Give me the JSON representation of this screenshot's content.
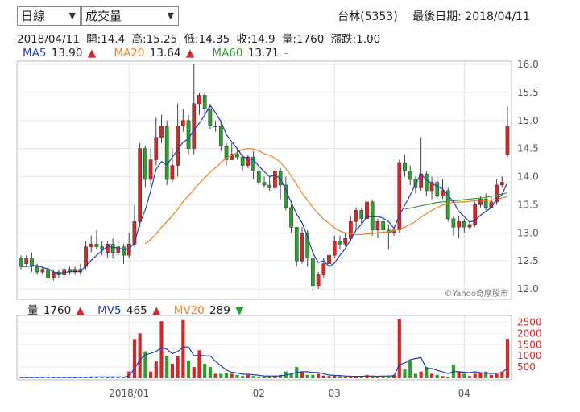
{
  "controls": {
    "period": "日線",
    "indicator": "成交量"
  },
  "header": {
    "stock": "台林(5353)",
    "last_date_label": "最後日期: 2018/04/11"
  },
  "ohlc": {
    "date": "2018/04/11",
    "open": "開:14.4",
    "high": "高:15.25",
    "low": "低:14.35",
    "close": "收:14.9",
    "volume": "量:1760",
    "change": "漲跌:1.00"
  },
  "ma_legend": {
    "ma5_label": "MA5",
    "ma5_value": "13.90",
    "ma5_arrow": "▲",
    "ma20_label": "MA20",
    "ma20_value": "13.64",
    "ma20_arrow": "▲",
    "ma60_label": "MA60",
    "ma60_value": "13.71",
    "ma60_arrow": "-"
  },
  "vol_legend": {
    "vol_label": "量",
    "vol_value": "1760",
    "vol_arrow": "▲",
    "mv5_label": "MV5",
    "mv5_value": "465",
    "mv5_arrow": "▲",
    "mv20_label": "MV20",
    "mv20_value": "289",
    "mv20_arrow": "▼"
  },
  "watermark": "©Yahoo奇摩股市",
  "colors": {
    "up": "#d62728",
    "down": "#2ca02c",
    "ma5": "#1f3fb4",
    "ma20": "#f07f1e",
    "ma60": "#3a9a3a"
  },
  "chart_data": {
    "type": "candlestick",
    "price_axis": {
      "ylim": [
        11.9,
        16.0
      ],
      "ticks": [
        "12.0",
        "12.5",
        "13.0",
        "13.5",
        "14.0",
        "14.5",
        "15.0",
        "15.5",
        "16.0"
      ]
    },
    "volume_axis": {
      "ylim": [
        0,
        2700
      ],
      "ticks": [
        "500",
        "1000",
        "1500",
        "2000",
        "2500"
      ]
    },
    "x_ticks": [
      {
        "label": "2018/01",
        "index": 20
      },
      {
        "label": "02",
        "index": 44
      },
      {
        "label": "03",
        "index": 58
      },
      {
        "label": "04",
        "index": 82
      }
    ],
    "candles": [
      [
        12.55,
        12.4,
        12.6,
        12.35
      ],
      [
        12.45,
        12.55,
        12.6,
        12.4
      ],
      [
        12.55,
        12.4,
        12.65,
        12.3
      ],
      [
        12.4,
        12.3,
        12.45,
        12.25
      ],
      [
        12.3,
        12.35,
        12.4,
        12.25
      ],
      [
        12.35,
        12.2,
        12.4,
        12.15
      ],
      [
        12.2,
        12.3,
        12.35,
        12.15
      ],
      [
        12.3,
        12.25,
        12.35,
        12.2
      ],
      [
        12.25,
        12.35,
        12.4,
        12.2
      ],
      [
        12.35,
        12.3,
        12.4,
        12.25
      ],
      [
        12.3,
        12.35,
        12.4,
        12.25
      ],
      [
        12.35,
        12.3,
        12.45,
        12.25
      ],
      [
        12.4,
        12.75,
        12.85,
        12.35
      ],
      [
        12.75,
        12.8,
        12.95,
        12.65
      ],
      [
        12.8,
        12.75,
        13.05,
        12.7
      ],
      [
        12.75,
        12.7,
        12.85,
        12.6
      ],
      [
        12.65,
        12.8,
        12.85,
        12.55
      ],
      [
        12.8,
        12.65,
        12.9,
        12.55
      ],
      [
        12.65,
        12.75,
        12.85,
        12.6
      ],
      [
        12.75,
        12.6,
        12.8,
        12.45
      ],
      [
        12.6,
        12.8,
        13.0,
        12.55
      ],
      [
        12.8,
        13.2,
        13.5,
        12.75
      ],
      [
        13.2,
        14.5,
        14.6,
        13.1
      ],
      [
        14.5,
        13.95,
        14.55,
        13.8
      ],
      [
        13.95,
        14.3,
        14.5,
        13.85
      ],
      [
        14.3,
        14.7,
        15.05,
        14.2
      ],
      [
        14.7,
        14.9,
        15.1,
        14.6
      ],
      [
        14.9,
        13.95,
        15.0,
        13.85
      ],
      [
        13.95,
        14.2,
        14.5,
        13.9
      ],
      [
        14.2,
        14.9,
        15.3,
        14.0
      ],
      [
        14.9,
        15.0,
        15.2,
        14.8
      ],
      [
        15.0,
        14.5,
        15.1,
        14.4
      ],
      [
        14.5,
        15.3,
        16.0,
        14.4
      ],
      [
        15.3,
        15.45,
        15.5,
        15.1
      ],
      [
        15.45,
        15.2,
        15.5,
        15.1
      ],
      [
        15.2,
        14.9,
        15.3,
        14.85
      ],
      [
        14.9,
        14.9,
        15.0,
        14.8
      ],
      [
        14.9,
        14.55,
        15.0,
        14.45
      ],
      [
        14.55,
        14.3,
        14.6,
        14.2
      ],
      [
        14.3,
        14.4,
        14.6,
        14.3
      ],
      [
        14.4,
        14.35,
        14.5,
        14.3
      ],
      [
        14.35,
        14.2,
        14.4,
        14.1
      ],
      [
        14.2,
        14.35,
        14.4,
        14.15
      ],
      [
        14.35,
        14.1,
        14.45,
        13.95
      ],
      [
        14.1,
        13.9,
        14.15,
        13.85
      ],
      [
        13.9,
        13.85,
        14.0,
        13.8
      ],
      [
        13.85,
        13.8,
        14.0,
        13.75
      ],
      [
        13.8,
        14.1,
        14.2,
        13.75
      ],
      [
        14.1,
        13.85,
        14.15,
        13.6
      ],
      [
        13.85,
        13.45,
        14.0,
        13.4
      ],
      [
        13.45,
        13.1,
        13.5,
        13.0
      ],
      [
        13.1,
        12.5,
        13.1,
        12.4
      ],
      [
        12.5,
        13.0,
        13.1,
        12.45
      ],
      [
        13.0,
        12.55,
        13.05,
        12.4
      ],
      [
        12.55,
        12.05,
        12.6,
        11.9
      ],
      [
        12.05,
        12.25,
        12.3,
        12.0
      ],
      [
        12.25,
        12.45,
        12.55,
        12.2
      ],
      [
        12.45,
        12.6,
        12.7,
        12.4
      ],
      [
        12.6,
        12.85,
        12.95,
        12.55
      ],
      [
        12.85,
        12.8,
        12.95,
        12.7
      ],
      [
        12.8,
        12.9,
        13.0,
        12.75
      ],
      [
        12.9,
        13.2,
        13.3,
        12.85
      ],
      [
        13.2,
        13.4,
        13.45,
        13.05
      ],
      [
        13.4,
        13.25,
        13.45,
        13.15
      ],
      [
        13.25,
        13.55,
        13.6,
        13.2
      ],
      [
        13.55,
        13.05,
        13.6,
        12.95
      ],
      [
        13.05,
        13.2,
        13.25,
        12.9
      ],
      [
        13.2,
        13.05,
        13.3,
        12.95
      ],
      [
        13.05,
        13.0,
        13.15,
        12.7
      ],
      [
        13.0,
        13.05,
        13.1,
        12.95
      ],
      [
        13.05,
        14.25,
        14.3,
        13.0
      ],
      [
        14.25,
        14.1,
        14.4,
        14.0
      ],
      [
        14.1,
        13.95,
        14.2,
        13.85
      ],
      [
        13.95,
        13.8,
        14.0,
        13.7
      ],
      [
        13.8,
        14.05,
        14.7,
        13.75
      ],
      [
        14.05,
        13.75,
        14.1,
        13.65
      ],
      [
        13.75,
        13.9,
        14.0,
        13.6
      ],
      [
        13.9,
        13.65,
        14.0,
        13.6
      ],
      [
        13.65,
        13.75,
        13.95,
        13.6
      ],
      [
        13.75,
        13.25,
        13.8,
        13.2
      ],
      [
        13.25,
        13.1,
        13.3,
        12.95
      ],
      [
        13.1,
        13.2,
        13.3,
        12.9
      ],
      [
        13.2,
        13.1,
        13.25,
        13.0
      ],
      [
        13.1,
        13.15,
        13.2,
        13.05
      ],
      [
        13.15,
        13.5,
        13.55,
        13.1
      ],
      [
        13.5,
        13.6,
        13.65,
        13.45
      ],
      [
        13.6,
        13.45,
        13.7,
        13.4
      ],
      [
        13.45,
        13.55,
        13.65,
        13.45
      ],
      [
        13.55,
        13.85,
        13.95,
        13.5
      ],
      [
        13.85,
        13.9,
        14.0,
        13.8
      ],
      [
        14.4,
        14.9,
        15.25,
        14.35
      ]
    ],
    "volumes": [
      30,
      20,
      40,
      70,
      60,
      50,
      40,
      30,
      40,
      60,
      50,
      50,
      60,
      80,
      70,
      60,
      50,
      40,
      60,
      50,
      300,
      1750,
      2000,
      1200,
      300,
      750,
      2550,
      1000,
      650,
      1000,
      2600,
      800,
      500,
      1250,
      650,
      500,
      200,
      200,
      250,
      200,
      150,
      100,
      150,
      100,
      80,
      80,
      100,
      120,
      150,
      300,
      200,
      500,
      300,
      150,
      150,
      200,
      120,
      100,
      100,
      100,
      80,
      60,
      80,
      100,
      150,
      100,
      60,
      70,
      120,
      150,
      2650,
      400,
      800,
      200,
      300,
      500,
      200,
      150,
      100,
      80,
      600,
      300,
      200,
      100,
      200,
      250,
      300,
      150,
      200,
      300,
      1760
    ],
    "ma5": [
      12.4,
      12.4,
      12.41,
      12.42,
      12.38,
      12.36,
      12.3,
      12.28,
      12.29,
      12.31,
      12.31,
      12.31,
      12.41,
      12.51,
      12.6,
      12.68,
      12.76,
      12.74,
      12.73,
      12.7,
      12.72,
      12.81,
      13.17,
      13.41,
      13.75,
      14.13,
      14.27,
      14.21,
      14.35,
      14.47,
      14.62,
      14.67,
      14.84,
      14.95,
      15.1,
      15.27,
      15.14,
      14.98,
      14.75,
      14.62,
      14.5,
      14.36,
      14.32,
      14.3,
      14.19,
      14.09,
      14.0,
      14.03,
      13.96,
      13.76,
      13.54,
      13.33,
      13.18,
      12.93,
      12.64,
      12.47,
      12.5,
      12.4,
      12.46,
      12.6,
      12.72,
      12.88,
      13.05,
      13.15,
      13.29,
      13.28,
      13.29,
      13.26,
      13.2,
      13.08,
      13.31,
      13.49,
      13.67,
      13.87,
      14.05,
      13.94,
      13.88,
      13.83,
      13.78,
      13.67,
      13.55,
      13.38,
      13.29,
      13.19,
      13.22,
      13.31,
      13.38,
      13.45,
      13.6,
      13.68,
      13.9
    ],
    "ma20": [
      null,
      null,
      null,
      null,
      null,
      null,
      null,
      null,
      null,
      null,
      null,
      null,
      null,
      null,
      null,
      null,
      null,
      null,
      null,
      null,
      null,
      null,
      null,
      12.8,
      12.88,
      12.98,
      13.1,
      13.2,
      13.3,
      13.42,
      13.55,
      13.66,
      13.77,
      13.88,
      13.98,
      14.08,
      14.16,
      14.25,
      14.33,
      14.38,
      14.43,
      14.48,
      14.5,
      14.49,
      14.46,
      14.41,
      14.38,
      14.33,
      14.26,
      14.14,
      14.01,
      13.86,
      13.71,
      13.58,
      13.45,
      13.34,
      13.24,
      13.17,
      13.09,
      13.03,
      13.0,
      12.98,
      12.97,
      12.97,
      12.98,
      12.99,
      13.0,
      13.01,
      13.02,
      13.04,
      13.06,
      13.1,
      13.15,
      13.2,
      13.28,
      13.34,
      13.4,
      13.45,
      13.49,
      13.52,
      13.54,
      13.55,
      13.55,
      13.56,
      13.57,
      13.58,
      13.58,
      13.58,
      13.6,
      13.62,
      13.64
    ],
    "ma60": [
      null,
      null,
      null,
      null,
      null,
      null,
      null,
      null,
      null,
      null,
      null,
      null,
      null,
      null,
      null,
      null,
      null,
      null,
      null,
      null,
      null,
      null,
      null,
      null,
      null,
      null,
      null,
      null,
      null,
      null,
      null,
      null,
      null,
      null,
      null,
      null,
      null,
      null,
      null,
      null,
      null,
      null,
      null,
      null,
      null,
      null,
      null,
      null,
      null,
      null,
      null,
      null,
      null,
      null,
      null,
      null,
      null,
      null,
      null,
      null,
      null,
      null,
      null,
      null,
      null,
      null,
      null,
      null,
      null,
      null,
      null,
      13.42,
      13.44,
      13.46,
      13.48,
      13.5,
      13.52,
      13.54,
      13.55,
      13.56,
      13.57,
      13.58,
      13.59,
      13.6,
      13.61,
      13.62,
      13.63,
      13.65,
      13.67,
      13.69,
      13.71
    ],
    "mv5": [
      40,
      40,
      40,
      45,
      50,
      50,
      50,
      45,
      45,
      45,
      45,
      45,
      50,
      55,
      60,
      60,
      60,
      60,
      60,
      55,
      95,
      430,
      820,
      1050,
      1110,
      1200,
      1360,
      1300,
      1100,
      1190,
      1400,
      1400,
      1000,
      1040,
      1000,
      1000,
      750,
      560,
      360,
      270,
      240,
      180,
      180,
      160,
      135,
      100,
      100,
      100,
      105,
      150,
      190,
      255,
      290,
      290,
      260,
      260,
      200,
      145,
      125,
      120,
      100,
      90,
      85,
      85,
      95,
      100,
      90,
      95,
      100,
      110,
      620,
      680,
      830,
      880,
      920,
      440,
      440,
      350,
      290,
      210,
      300,
      290,
      270,
      250,
      290,
      250,
      220,
      210,
      230,
      240,
      465
    ],
    "mv20": [
      null,
      null,
      null,
      null,
      null,
      null,
      null,
      null,
      null,
      null,
      null,
      null,
      null,
      null,
      null,
      null,
      null,
      null,
      null,
      null,
      null,
      null,
      null,
      null,
      null,
      null,
      null,
      null,
      null,
      null,
      null,
      null,
      null,
      null,
      null,
      null,
      null,
      null,
      null,
      null,
      null,
      null,
      null,
      null,
      null,
      null,
      null,
      null,
      null,
      null,
      null,
      null,
      null,
      null,
      null,
      null,
      null,
      null,
      null,
      null,
      null,
      null,
      null,
      null,
      null,
      null,
      null,
      null,
      null,
      null,
      null,
      null,
      null,
      null,
      null,
      null,
      null,
      null,
      null,
      null,
      null,
      null,
      null,
      null,
      null,
      null,
      null,
      null,
      null,
      null,
      289
    ]
  }
}
